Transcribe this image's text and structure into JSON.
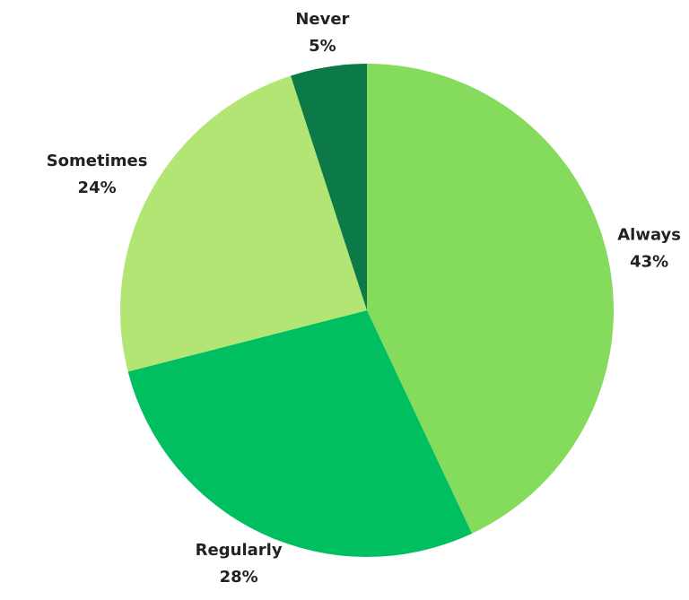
{
  "chart_data": {
    "type": "pie",
    "categories": [
      "Always",
      "Regularly",
      "Sometimes",
      "Never"
    ],
    "values": [
      43,
      28,
      24,
      5
    ],
    "value_labels": [
      "43%",
      "28%",
      "24%",
      "5%"
    ],
    "colors": [
      "#84db5c",
      "#00bf60",
      "#b3e574",
      "#0b7a47"
    ]
  }
}
